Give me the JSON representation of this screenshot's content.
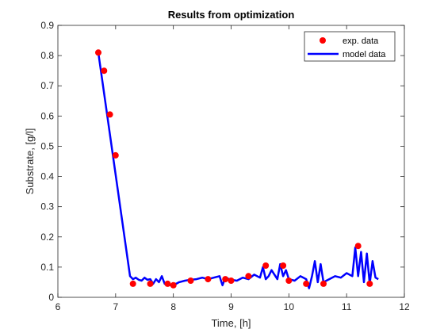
{
  "chart_data": {
    "type": "line",
    "title": "Results from optimization",
    "xlabel": "Time, [h]",
    "ylabel": "Substrate, [g/l]",
    "xlim": [
      6,
      12
    ],
    "ylim": [
      0,
      0.9
    ],
    "xticks": [
      6,
      7,
      8,
      9,
      10,
      11,
      12
    ],
    "yticks": [
      0,
      0.1,
      0.2,
      0.3,
      0.4,
      0.5,
      0.6,
      0.7,
      0.8,
      0.9
    ],
    "grid": false,
    "legend_position": "top-right",
    "series": [
      {
        "name": "exp. data",
        "kind": "scatter",
        "color": "#ff0000",
        "x": [
          6.7,
          6.8,
          6.9,
          7.0,
          7.3,
          7.6,
          7.9,
          8.0,
          8.3,
          8.6,
          8.9,
          9.0,
          9.3,
          9.6,
          9.9,
          10.0,
          10.3,
          10.6,
          11.2,
          11.4
        ],
        "y": [
          0.81,
          0.75,
          0.605,
          0.47,
          0.045,
          0.045,
          0.045,
          0.04,
          0.055,
          0.06,
          0.06,
          0.055,
          0.07,
          0.105,
          0.105,
          0.055,
          0.045,
          0.045,
          0.17,
          0.045
        ]
      },
      {
        "name": "model data",
        "kind": "line",
        "color": "#0000ff",
        "x": [
          6.7,
          7.25,
          7.3,
          7.35,
          7.4,
          7.45,
          7.5,
          7.55,
          7.6,
          7.65,
          7.7,
          7.75,
          7.8,
          7.85,
          7.9,
          7.95,
          8.0,
          8.05,
          8.1,
          8.2,
          8.3,
          8.4,
          8.5,
          8.6,
          8.7,
          8.8,
          8.85,
          8.9,
          9.0,
          9.1,
          9.2,
          9.3,
          9.4,
          9.5,
          9.55,
          9.6,
          9.65,
          9.7,
          9.8,
          9.85,
          9.9,
          9.95,
          10.0,
          10.1,
          10.2,
          10.3,
          10.35,
          10.4,
          10.45,
          10.5,
          10.55,
          10.6,
          10.7,
          10.8,
          10.9,
          11.0,
          11.1,
          11.15,
          11.2,
          11.25,
          11.3,
          11.35,
          11.4,
          11.45,
          11.5,
          11.55
        ],
        "y": [
          0.81,
          0.07,
          0.06,
          0.065,
          0.058,
          0.055,
          0.065,
          0.058,
          0.06,
          0.045,
          0.06,
          0.05,
          0.07,
          0.045,
          0.05,
          0.04,
          0.045,
          0.045,
          0.05,
          0.055,
          0.058,
          0.06,
          0.065,
          0.06,
          0.065,
          0.07,
          0.04,
          0.065,
          0.058,
          0.055,
          0.065,
          0.06,
          0.075,
          0.065,
          0.1,
          0.06,
          0.07,
          0.09,
          0.06,
          0.11,
          0.07,
          0.09,
          0.06,
          0.055,
          0.07,
          0.06,
          0.03,
          0.07,
          0.12,
          0.05,
          0.11,
          0.05,
          0.06,
          0.07,
          0.065,
          0.08,
          0.07,
          0.165,
          0.07,
          0.15,
          0.05,
          0.145,
          0.045,
          0.12,
          0.065,
          0.06
        ]
      }
    ]
  }
}
